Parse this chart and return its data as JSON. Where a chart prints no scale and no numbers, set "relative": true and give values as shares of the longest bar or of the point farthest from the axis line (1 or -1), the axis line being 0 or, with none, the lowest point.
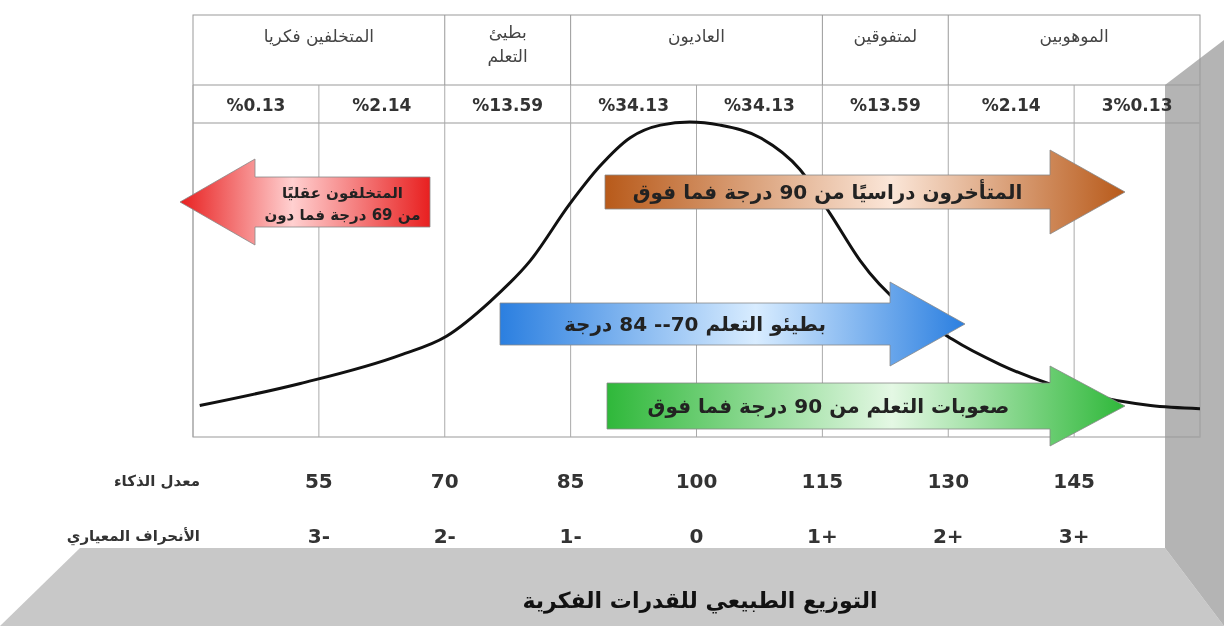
{
  "chart_data": {
    "type": "line",
    "relative": true,
    "title": "التوزيع الطبيعي للقدرات الفكرية",
    "xlabel": "معدل الذكاء",
    "x2label": "الأنحراف المعياري",
    "x": [
      40.8,
      52.8,
      64.7,
      70.2,
      75.4,
      80.2,
      84.9,
      88.5,
      92.1,
      95.7,
      99.2,
      102.8,
      107.6,
      112.3,
      115.9,
      119.5,
      124.3,
      130.5,
      136.2,
      145.5,
      154.1,
      160
    ],
    "series": [
      {
        "color": "#111111",
        "values": [
          0.1,
          0.17,
          0.26,
          0.32,
          0.43,
          0.56,
          0.74,
          0.86,
          0.95,
          0.99,
          1,
          0.99,
          0.95,
          0.85,
          0.71,
          0.56,
          null,
          0.31,
          0.23,
          null,
          0.1,
          0.09
        ]
      }
    ],
    "xlim": [
      40,
      160
    ],
    "xticks": [
      {
        "value": 40,
        "label": null
      },
      55,
      70,
      85,
      100,
      115,
      130,
      145,
      {
        "value": 160,
        "label": null
      }
    ],
    "x2lim": [
      -4,
      4
    ],
    "x2ticks": [
      {
        "value": -3,
        "label": "3-"
      },
      {
        "value": -2,
        "label": "2-"
      },
      {
        "value": -1,
        "label": "1-"
      },
      0,
      {
        "value": 1,
        "label": "1+"
      },
      {
        "value": 2,
        "label": "2+"
      },
      {
        "value": 3,
        "label": "3+"
      }
    ],
    "grid": "x",
    "marker": "none",
    "line_style": "solid",
    "annotations": [
      "المتخلفين فكريا",
      "بطيئ التعلم",
      "العاديون",
      "لمتفوقين",
      "الموهوبين",
      "%0.13",
      "%2.14",
      "%13.59",
      "%34.13",
      "%34.13",
      "%13.59",
      "%2.14",
      "3%0.13",
      "المتخلفون عقليًا\nمن 69 درجة فما دون",
      "المتأخرون دراسيًا من 90 درجة فما فوق",
      "بطيئو التعلم 70-- 84 درجة",
      "صعوبات التعلم من 90 درجة فما فوق"
    ]
  }
}
